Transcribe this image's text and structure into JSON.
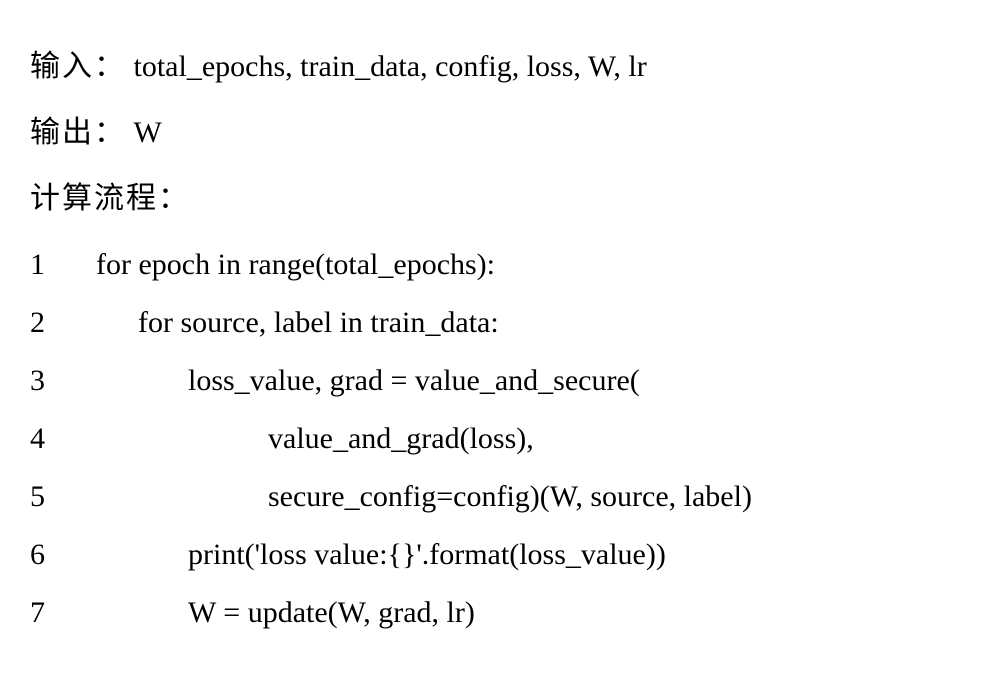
{
  "header": {
    "input_label": "输入：",
    "input_value": "total_epochs, train_data, config, loss, W, lr",
    "output_label": "输出：",
    "output_value": "W",
    "process_label": "计算流程："
  },
  "code": {
    "lines": [
      {
        "num": "1",
        "text": "for epoch in range(total_epochs):",
        "indent": 1
      },
      {
        "num": "2",
        "text": "for source, label in train_data:",
        "indent": 2
      },
      {
        "num": "3",
        "text": "loss_value, grad = value_and_secure(",
        "indent": 3
      },
      {
        "num": "4",
        "text": "value_and_grad(loss),",
        "indent": 4
      },
      {
        "num": "5",
        "text": "secure_config=config)(W, source, label)",
        "indent": 4
      },
      {
        "num": "6",
        "text": "print('loss value:{}'.format(loss_value))",
        "indent": 3
      },
      {
        "num": "7",
        "text": "W = update(W, grad, lr)",
        "indent": 3
      }
    ]
  },
  "styling": {
    "background_color": "#ffffff",
    "text_color": "#000000",
    "font_family": "Times New Roman, SimSun, serif",
    "font_size_pt": 22,
    "line_height": 1.8
  }
}
